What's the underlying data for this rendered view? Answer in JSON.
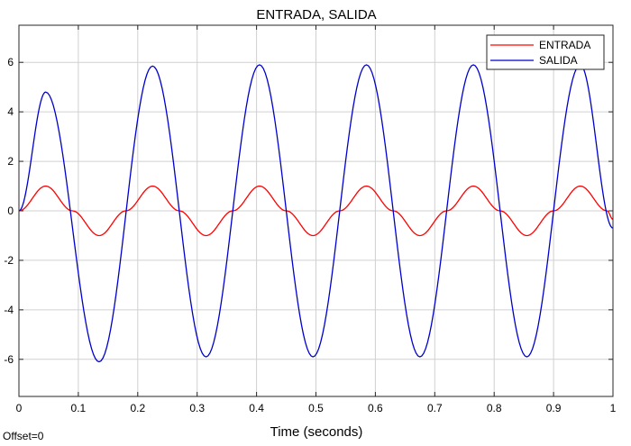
{
  "chart_data": {
    "type": "line",
    "title": "ENTRADA, SALIDA",
    "xlabel": "Time (seconds)",
    "ylabel": "",
    "xlim": [
      0,
      1
    ],
    "ylim": [
      -7.5,
      7.5
    ],
    "xticks": [
      0,
      0.1,
      0.2,
      0.3,
      0.4,
      0.5,
      0.6,
      0.7,
      0.8,
      0.9,
      1
    ],
    "xtick_labels": [
      "0",
      "0.1",
      "0.2",
      "0.3",
      "0.4",
      "0.5",
      "0.6",
      "0.7",
      "0.8",
      "0.9",
      "1"
    ],
    "yticks": [
      -6,
      -4,
      -2,
      0,
      2,
      4,
      6
    ],
    "ytick_labels": [
      "-6",
      "-4",
      "-2",
      "0",
      "2",
      "4",
      "6"
    ],
    "grid": true,
    "legend_position": "top-right",
    "annotation": "Offset=0",
    "series": [
      {
        "name": "ENTRADA",
        "color": "#ff0000",
        "x": [
          0,
          0.045,
          0.09,
          0.135,
          0.18,
          0.225,
          0.27,
          0.315,
          0.36,
          0.405,
          0.45,
          0.495,
          0.54,
          0.585,
          0.63,
          0.675,
          0.72,
          0.765,
          0.81,
          0.855,
          0.9,
          0.945,
          0.99,
          1
        ],
        "y": [
          0,
          1,
          0,
          -1,
          0,
          1,
          0,
          -1,
          0,
          1,
          0,
          -1,
          0,
          1,
          0,
          -1,
          0,
          1,
          0,
          -1,
          0,
          1,
          0,
          -0.34
        ]
      },
      {
        "name": "SALIDA",
        "color": "#0000cc",
        "x": [
          0,
          0.045,
          0.135,
          0.225,
          0.315,
          0.405,
          0.495,
          0.585,
          0.675,
          0.765,
          0.855,
          0.945,
          1
        ],
        "y": [
          0,
          4.8,
          -6.1,
          5.85,
          -5.9,
          5.9,
          -5.9,
          5.9,
          -5.9,
          5.9,
          -5.9,
          5.9,
          -0.7
        ]
      }
    ]
  }
}
